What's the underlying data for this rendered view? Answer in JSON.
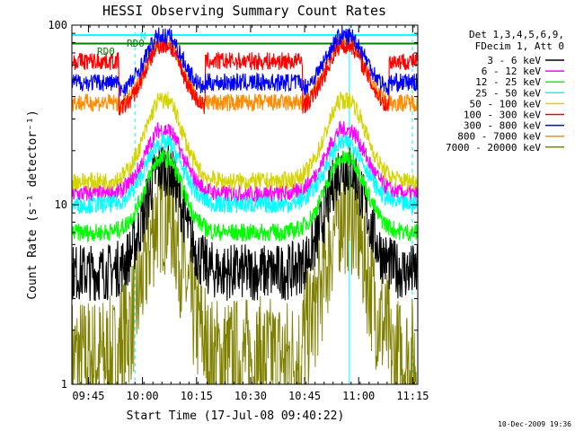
{
  "chart_data": {
    "type": "line",
    "title": "HESSI Observing Summary Count Rates",
    "xlabel": "Start Time (17-Jul-08 09:40:22)",
    "ylabel": "Count Rate (s⁻¹ detector⁻¹)",
    "y_scale": "log",
    "ylim": [
      1,
      100
    ],
    "y_ticks": [
      "1",
      "10",
      "100"
    ],
    "x_range_minutes": [
      0,
      96
    ],
    "x_tick_labels": [
      {
        "label": "09:45",
        "minutes": 4.6
      },
      {
        "label": "10:00",
        "minutes": 19.6
      },
      {
        "label": "10:15",
        "minutes": 34.6
      },
      {
        "label": "10:30",
        "minutes": 49.6
      },
      {
        "label": "10:45",
        "minutes": 64.6
      },
      {
        "label": "11:00",
        "minutes": 79.6
      },
      {
        "label": "11:15",
        "minutes": 94.6
      }
    ],
    "legend_header": [
      "Det 1,3,4,5,6,9,",
      "FDecim 1, Att 0"
    ],
    "legend_position": "right",
    "annotations": [
      {
        "text": "N",
        "color": "#00ffff"
      },
      {
        "text": "RD0",
        "color": "#008000"
      },
      {
        "text": "RD0",
        "color": "#008000"
      }
    ],
    "vlines": [
      {
        "minutes": 17.5,
        "style": "dashed",
        "color": "#00ffff"
      },
      {
        "minutes": 77.0,
        "style": "solid",
        "color": "#00ffff"
      },
      {
        "minutes": 94.5,
        "style": "dashed",
        "color": "#00ffff"
      }
    ],
    "day_segments_minutes": [
      [
        0,
        13
      ],
      [
        37,
        64
      ],
      [
        88,
        96
      ]
    ],
    "series": [
      {
        "name": "3 - 6 keV",
        "color": "#000000",
        "night": 4.2,
        "peak": 16
      },
      {
        "name": "6 - 12 keV",
        "color": "#ff00ff",
        "night": 11.5,
        "peak": 26
      },
      {
        "name": "12 - 25 keV",
        "color": "#00ff00",
        "night": 7.0,
        "peak": 18
      },
      {
        "name": "25 - 50 keV",
        "color": "#00ffff",
        "night": 10.0,
        "peak": 22
      },
      {
        "name": "50 - 100 keV",
        "color": "#d4d400",
        "night": 13.5,
        "peak": 38
      },
      {
        "name": "100 - 300 keV",
        "color": "#ff0000",
        "night": 33,
        "peak": 77,
        "day": 63
      },
      {
        "name": "300 - 800 keV",
        "color": "#0000ff",
        "night": 42,
        "peak": 87,
        "day": 48
      },
      {
        "name": "800 - 7000 keV",
        "color": "#ff8c00",
        "night": 34,
        "peak": 80,
        "day": 37
      },
      {
        "name": "7000 - 20000 keV",
        "color": "#808000",
        "night": 1.6,
        "peak": 9,
        "day": 1.4
      }
    ]
  },
  "footer": {
    "timestamp": "10-Dec-2009 19:36"
  }
}
